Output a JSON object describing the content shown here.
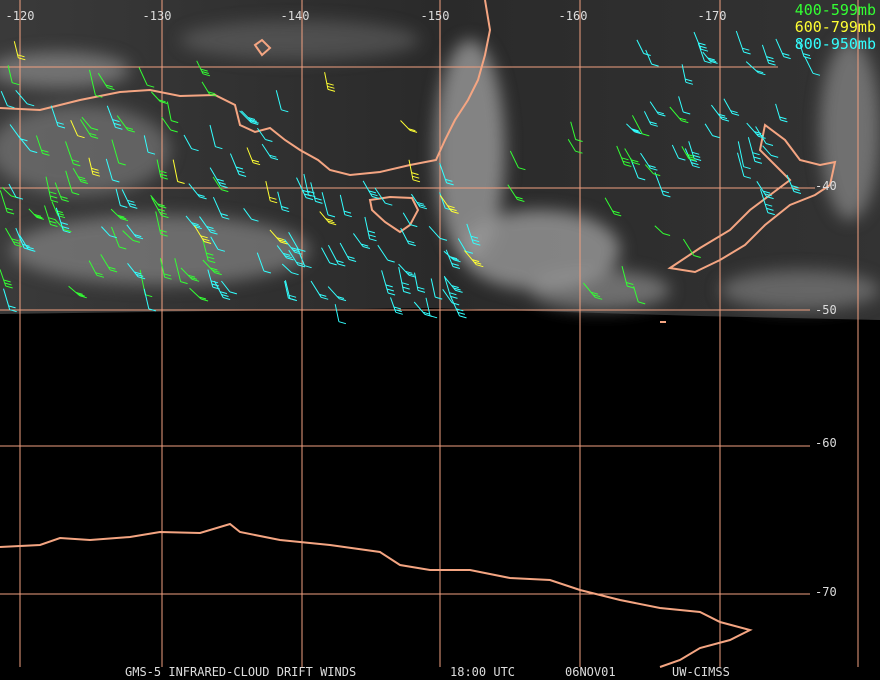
{
  "map": {
    "lon_labels": [
      "-120",
      "-130",
      "-140",
      "-150",
      "-160",
      "-170"
    ],
    "lat_labels": [
      "-40",
      "-50",
      "-60",
      "-70"
    ],
    "legend": [
      "400-599mb",
      "600-799mb",
      "800-950mb"
    ],
    "footer": {
      "product": "GMS-5 INFRARED-CLOUD DRIFT WINDS",
      "time": "18:00 UTC",
      "date": "06NOV01",
      "source": "UW-CIMSS"
    }
  }
}
